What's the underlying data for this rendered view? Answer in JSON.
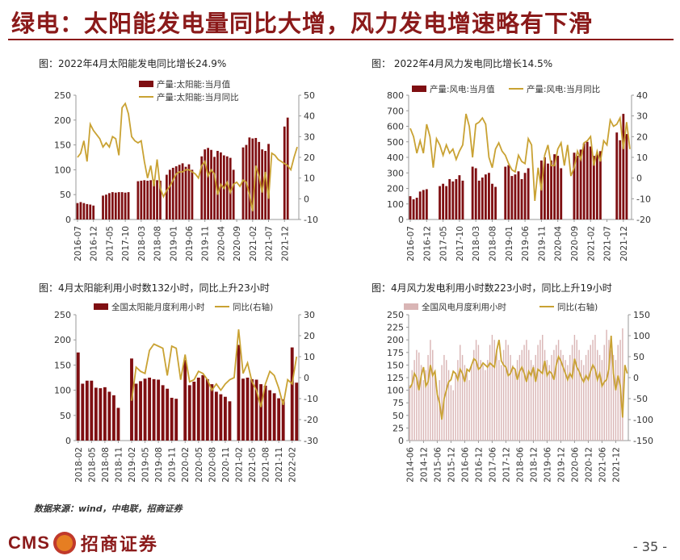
{
  "page": {
    "title": "绿电：太阳能发电量同比大增，风力发电增速略有下滑",
    "source": "数据来源：wind，中电联，招商证券",
    "logo_text": "CMS",
    "logo_cn": "招商证券",
    "page_number": "- 35 -",
    "colors": {
      "brand": "#8b1a1a",
      "bar": "#7f0f12",
      "line": "#c9a233",
      "bar_light": "#d9b5b5"
    }
  },
  "chart_data": [
    {
      "type": "bar",
      "title": "图：2022年4月太阳能发电同比增长24.9%",
      "x_ticks": [
        "2016-07",
        "2016-12",
        "2017-05",
        "2017-10",
        "2018-03",
        "2018-08",
        "2019-01",
        "2019-06",
        "2019-11",
        "2020-04",
        "2020-09",
        "2021-02",
        "2021-07",
        "2021-12"
      ],
      "x_tick_index": [
        0,
        5,
        10,
        15,
        20,
        25,
        30,
        35,
        40,
        45,
        50,
        55,
        60,
        65
      ],
      "left_axis": {
        "ylim": [
          0,
          250
        ],
        "ticks": [
          0,
          50,
          100,
          150,
          200,
          250
        ]
      },
      "right_axis": {
        "ylim": [
          -10,
          50
        ],
        "ticks": [
          -10,
          0,
          10,
          20,
          30,
          40,
          50
        ]
      },
      "series": [
        {
          "name": "产量:太阳能:当月值",
          "kind": "bar",
          "axis": "left",
          "values": [
            33,
            35,
            33,
            31,
            30,
            28,
            null,
            null,
            48,
            50,
            53,
            55,
            54,
            55,
            55,
            54,
            55,
            null,
            null,
            77,
            78,
            79,
            78,
            79,
            80,
            79,
            78,
            null,
            90,
            100,
            104,
            107,
            110,
            113,
            106,
            111,
            100,
            null,
            null,
            127,
            141,
            144,
            140,
            126,
            138,
            135,
            129,
            127,
            124,
            100,
            null,
            null,
            145,
            150,
            165,
            163,
            164,
            156,
            141,
            138,
            152,
            null,
            null,
            null,
            null,
            187,
            205
          ],
          "color": "#7f0f12"
        },
        {
          "name": "产量:太阳能:当月同比",
          "kind": "line",
          "axis": "right",
          "values": [
            20,
            22,
            28,
            18,
            36,
            33,
            31,
            29,
            25,
            27,
            25,
            30,
            29,
            21,
            44,
            46,
            41,
            30,
            28,
            27,
            28,
            18,
            10,
            16,
            6,
            19,
            5,
            1,
            4,
            6,
            9,
            12,
            13,
            13,
            14,
            14,
            13,
            12,
            10,
            16,
            18,
            11,
            14,
            12,
            2,
            7,
            5,
            8,
            3,
            7,
            8,
            6,
            9,
            8,
            2,
            -6,
            16,
            11,
            3,
            13,
            0,
            22,
            21,
            19,
            18,
            17,
            16,
            14,
            20,
            25
          ],
          "color": "#c9a233"
        }
      ]
    },
    {
      "type": "bar",
      "title": "图：  2022年4月风力发电同比增长14.5%",
      "x_ticks": [
        "2016-07",
        "2016-12",
        "2017-05",
        "2017-10",
        "2018-03",
        "2018-08",
        "2019-01",
        "2019-06",
        "2019-11",
        "2020-04",
        "2020-09",
        "2021-02",
        "2021-07",
        "2021-12"
      ],
      "x_tick_index": [
        0,
        5,
        10,
        15,
        20,
        25,
        30,
        35,
        40,
        45,
        50,
        55,
        60,
        65
      ],
      "left_axis": {
        "ylim": [
          0,
          800
        ],
        "ticks": [
          0,
          100,
          200,
          300,
          400,
          500,
          600,
          700,
          800
        ]
      },
      "right_axis": {
        "ylim": [
          -20,
          40
        ],
        "ticks": [
          -20,
          -10,
          0,
          10,
          20,
          30,
          40
        ]
      },
      "series": [
        {
          "name": "产量:风电:当月值",
          "kind": "bar",
          "axis": "left",
          "values": [
            150,
            130,
            140,
            180,
            190,
            195,
            null,
            null,
            null,
            215,
            230,
            215,
            260,
            245,
            260,
            285,
            250,
            null,
            null,
            340,
            330,
            250,
            270,
            290,
            300,
            230,
            210,
            null,
            null,
            340,
            350,
            280,
            290,
            310,
            260,
            300,
            330,
            null,
            null,
            null,
            380,
            400,
            360,
            380,
            420,
            410,
            330,
            null,
            null,
            null,
            430,
            410,
            450,
            490,
            500,
            470,
            410,
            420,
            440,
            null,
            null,
            null,
            null,
            560,
            510,
            680,
            550
          ],
          "color": "#7f0f12"
        },
        {
          "name": "产量:风电:当月同比",
          "kind": "line",
          "axis": "right",
          "values": [
            24,
            20,
            12,
            18,
            12,
            26,
            20,
            5,
            19,
            16,
            11,
            16,
            12,
            14,
            9,
            13,
            16,
            31,
            25,
            10,
            26,
            27,
            29,
            26,
            10,
            5,
            14,
            17,
            13,
            11,
            7,
            4,
            3,
            11,
            8,
            7,
            19,
            16,
            -11,
            5,
            -6,
            11,
            16,
            6,
            6,
            14,
            17,
            6,
            16,
            1,
            5,
            13,
            9,
            17,
            18,
            20,
            6,
            13,
            8,
            18,
            16,
            28,
            25,
            26,
            29,
            14,
            27,
            14
          ],
          "color": "#c9a233"
        }
      ]
    },
    {
      "type": "bar",
      "title": "图：4月太阳能利用小时数132小时，同比上升23小时",
      "x_ticks": [
        "2018-02",
        "2018-05",
        "2018-08",
        "2018-11",
        "2019-02",
        "2019-05",
        "2019-08",
        "2019-11",
        "2020-02",
        "2020-05",
        "2020-08",
        "2020-11",
        "2021-02",
        "2021-05",
        "2021-08",
        "2021-11",
        "2022-02"
      ],
      "x_tick_index": [
        0,
        3,
        6,
        9,
        12,
        15,
        18,
        21,
        24,
        27,
        30,
        33,
        36,
        39,
        42,
        45,
        48
      ],
      "left_axis": {
        "ylim": [
          0,
          250
        ],
        "ticks": [
          0,
          50,
          100,
          150,
          200,
          250
        ]
      },
      "right_axis": {
        "ylim": [
          -30,
          30
        ],
        "ticks": [
          -30,
          -20,
          -10,
          0,
          10,
          20,
          30
        ]
      },
      "series": [
        {
          "name": "全国太阳能月度利用小时",
          "kind": "bar",
          "axis": "left",
          "values": [
            175,
            113,
            119,
            119,
            105,
            104,
            106,
            97,
            90,
            65,
            null,
            null,
            163,
            113,
            118,
            123,
            125,
            122,
            121,
            110,
            103,
            85,
            83,
            null,
            160,
            110,
            117,
            125,
            130,
            122,
            112,
            97,
            92,
            87,
            78,
            null,
            190,
            123,
            125,
            122,
            121,
            112,
            109,
            100,
            94,
            84,
            82,
            null,
            185,
            115
          ],
          "color": "#7f0f12"
        },
        {
          "name": "同比(右轴)",
          "kind": "line",
          "axis": "right",
          "values": [
            null,
            null,
            null,
            null,
            null,
            null,
            null,
            null,
            null,
            null,
            null,
            null,
            -11,
            5,
            3,
            2,
            13,
            16,
            15,
            14,
            1,
            15,
            14,
            -1,
            11,
            -2,
            -1,
            3,
            2,
            -1,
            -6,
            -3,
            -6,
            -3,
            -1,
            0,
            23,
            2,
            7,
            -2,
            -6,
            -14,
            -3,
            3,
            1,
            -5,
            -13,
            -1,
            -3,
            10
          ],
          "color": "#c9a233"
        }
      ]
    },
    {
      "type": "bar",
      "title": "图：4月风力发电利用小时数223小时，同比上升19小时",
      "x_ticks": [
        "2014-06",
        "2014-12",
        "2015-06",
        "2015-12",
        "2016-06",
        "2016-12",
        "2017-06",
        "2017-12",
        "2018-06",
        "2018-12",
        "2019-06",
        "2019-12",
        "2020-06",
        "2020-12",
        "2021-06",
        "2021-12"
      ],
      "x_tick_index": [
        0,
        6,
        12,
        18,
        24,
        30,
        36,
        42,
        48,
        54,
        60,
        66,
        72,
        78,
        84,
        90
      ],
      "left_axis": {
        "ylim": [
          0,
          250
        ],
        "ticks": [
          0,
          25,
          50,
          75,
          100,
          125,
          150,
          175,
          200,
          225,
          250
        ]
      },
      "right_axis": {
        "ylim": [
          -150,
          150
        ],
        "ticks": [
          -150,
          -100,
          -50,
          0,
          50,
          100,
          150
        ]
      },
      "series": [
        {
          "name": "全国风电月度利用小时",
          "kind": "bar",
          "axis": "left",
          "values": [
            110,
            140,
            160,
            180,
            175,
            150,
            120,
            140,
            170,
            200,
            180,
            130,
            100,
            120,
            150,
            170,
            160,
            140,
            110,
            100,
            130,
            160,
            190,
            170,
            150,
            140,
            120,
            150,
            180,
            200,
            190,
            160,
            150,
            140,
            160,
            190,
            210,
            200,
            180,
            160,
            150,
            180,
            200,
            190,
            170,
            150,
            140,
            160,
            170,
            180,
            190,
            200,
            180,
            160,
            150,
            170,
            190,
            200,
            210,
            180,
            160,
            150,
            170,
            180,
            190,
            200,
            180,
            170,
            160,
            150,
            170,
            190,
            210,
            200,
            180,
            160,
            150,
            170,
            180,
            190,
            200,
            210,
            180,
            170,
            160,
            190,
            220,
            200,
            180,
            170,
            160,
            190,
            200,
            223
          ],
          "color": "#d9b5b5"
        },
        {
          "name": "同比(右轴)",
          "kind": "line",
          "axis": "right",
          "values": [
            -25,
            -15,
            10,
            0,
            -30,
            5,
            25,
            -20,
            -10,
            30,
            5,
            15,
            -40,
            -60,
            -100,
            -50,
            -30,
            -10,
            -5,
            15,
            10,
            -5,
            20,
            10,
            -10,
            20,
            15,
            30,
            45,
            40,
            20,
            25,
            35,
            30,
            25,
            35,
            30,
            25,
            65,
            90,
            40,
            30,
            25,
            5,
            10,
            25,
            20,
            -5,
            15,
            25,
            10,
            -10,
            15,
            5,
            25,
            -10,
            20,
            15,
            10,
            40,
            5,
            15,
            10,
            -5,
            30,
            50,
            40,
            25,
            10,
            -5,
            10,
            0,
            45,
            25,
            15,
            0,
            -10,
            5,
            -5,
            15,
            30,
            20,
            -5,
            10,
            -20,
            -10,
            -5,
            20,
            100,
            10,
            -30,
            5,
            -20,
            -95,
            30,
            10
          ],
          "color": "#c9a233"
        }
      ]
    }
  ]
}
